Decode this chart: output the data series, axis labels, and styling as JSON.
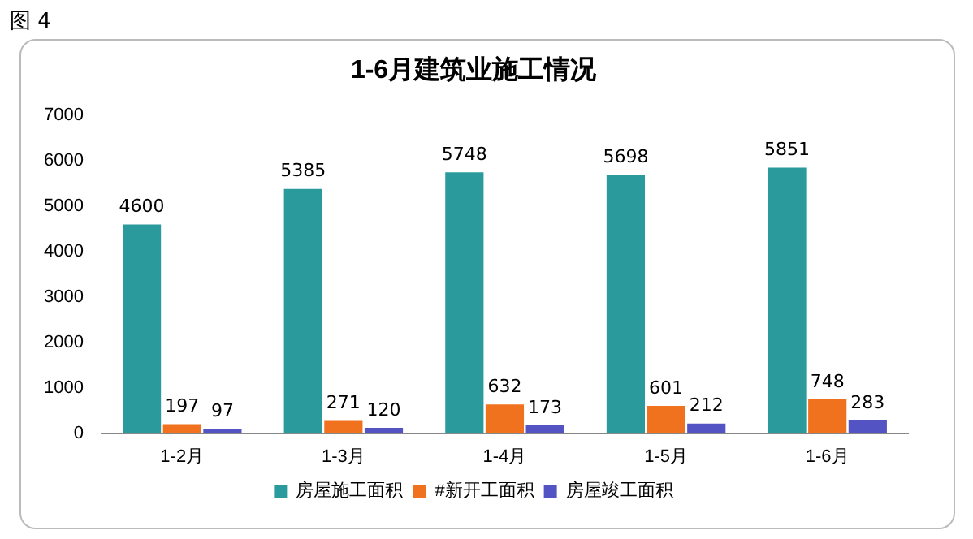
{
  "chart_data": {
    "type": "bar",
    "title": "1-6月建筑业施工情况",
    "annotations": [
      "图 4"
    ],
    "categories": [
      "1-2月",
      "1-3月",
      "1-4月",
      "1-5月",
      "1-6月"
    ],
    "series": [
      {
        "name": "房屋施工面积",
        "color": "#2a9a9c",
        "values": [
          4600,
          5385,
          5748,
          5698,
          5851
        ]
      },
      {
        "name": "#新开工面积",
        "color": "#f0721e",
        "values": [
          197,
          271,
          632,
          601,
          748
        ]
      },
      {
        "name": "房屋竣工面积",
        "color": "#5453c4",
        "values": [
          97,
          120,
          173,
          212,
          283
        ]
      }
    ],
    "ylim": [
      0,
      7000
    ],
    "yticks": [
      0,
      1000,
      2000,
      3000,
      4000,
      5000,
      6000,
      7000
    ],
    "grid": false,
    "legend": "bottom",
    "data_labels": true
  }
}
